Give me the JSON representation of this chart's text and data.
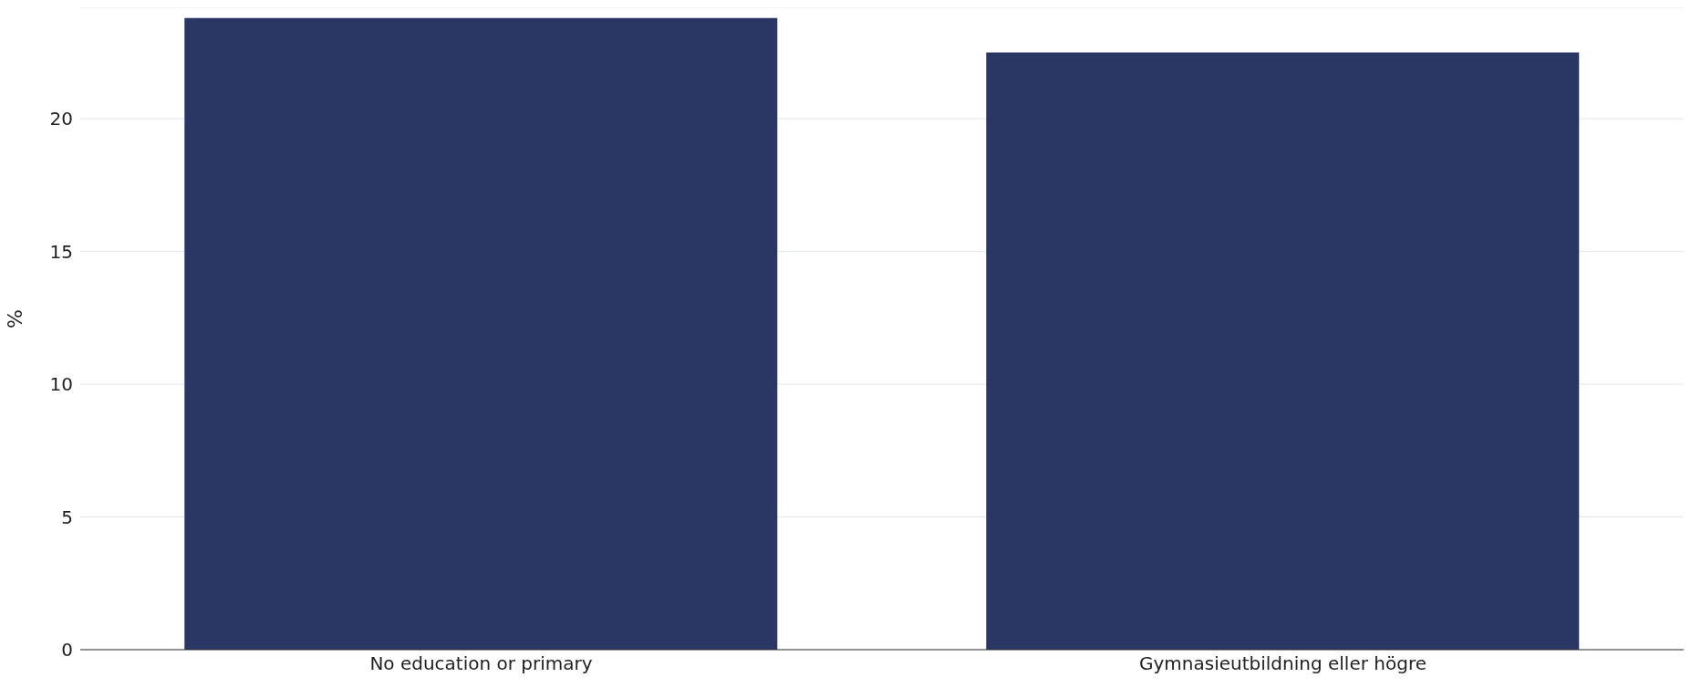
{
  "chart_data": {
    "type": "bar",
    "ylabel": "%",
    "categories": [
      "No education or primary",
      "Gymnasieutbildning eller högre"
    ],
    "values": [
      23.8,
      22.5
    ],
    "color": "#2a3764",
    "ylim": [
      0,
      24.2
    ],
    "yticks": [
      0,
      5,
      10,
      15,
      20
    ],
    "grid": "y"
  }
}
